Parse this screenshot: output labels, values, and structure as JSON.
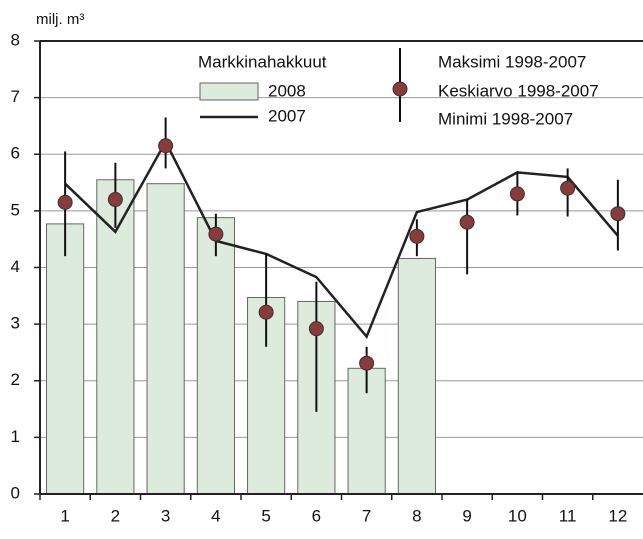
{
  "chart_data": {
    "type": "bar",
    "ylabel": "milj. m³",
    "legend_title": "Markkinahakkuut",
    "categories": [
      "1",
      "2",
      "3",
      "4",
      "5",
      "6",
      "7",
      "8",
      "9",
      "10",
      "11",
      "12"
    ],
    "ylim": [
      0,
      8
    ],
    "yticks": [
      0,
      1,
      2,
      3,
      4,
      5,
      6,
      7,
      8
    ],
    "grid": true,
    "series": [
      {
        "name": "2008",
        "type": "bar",
        "color": "#dcebdc",
        "values": [
          4.77,
          5.55,
          5.48,
          4.88,
          3.47,
          3.4,
          2.22,
          4.16,
          null,
          null,
          null,
          null
        ]
      },
      {
        "name": "2007",
        "type": "line",
        "color": "#222222",
        "values": [
          5.48,
          4.63,
          6.22,
          4.47,
          4.24,
          3.83,
          2.78,
          4.98,
          5.2,
          5.68,
          5.6,
          4.56
        ]
      },
      {
        "name": "Keskiarvo 1998-2007",
        "type": "scatter",
        "color": "#8b3a3a",
        "values": [
          5.15,
          5.2,
          6.15,
          4.59,
          3.21,
          2.92,
          2.31,
          4.55,
          4.8,
          5.3,
          5.4,
          4.95
        ]
      },
      {
        "name": "Maksimi 1998-2007",
        "type": "range_high",
        "color": "#111111",
        "values": [
          6.05,
          5.85,
          6.65,
          4.95,
          4.25,
          3.75,
          2.6,
          4.85,
          5.2,
          5.7,
          5.75,
          5.55
        ]
      },
      {
        "name": "Minimi 1998-2007",
        "type": "range_low",
        "color": "#111111",
        "values": [
          4.2,
          4.7,
          5.75,
          4.2,
          2.6,
          1.45,
          1.78,
          4.2,
          3.88,
          4.92,
          4.9,
          4.3
        ]
      }
    ]
  }
}
